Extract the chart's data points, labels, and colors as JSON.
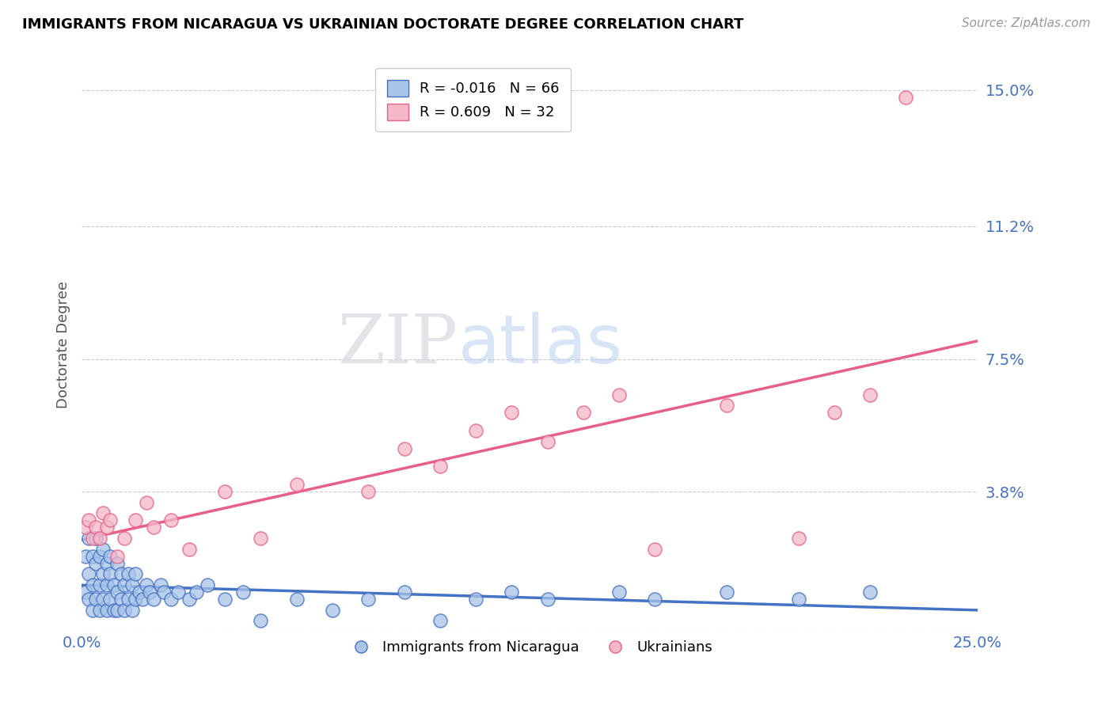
{
  "title": "IMMIGRANTS FROM NICARAGUA VS UKRAINIAN DOCTORATE DEGREE CORRELATION CHART",
  "source": "Source: ZipAtlas.com",
  "ylabel": "Doctorate Degree",
  "x_min": 0.0,
  "x_max": 0.25,
  "y_min": 0.0,
  "y_max": 0.158,
  "x_ticks": [
    0.0,
    0.05,
    0.1,
    0.15,
    0.2,
    0.25
  ],
  "y_ticks": [
    0.0,
    0.038,
    0.075,
    0.112,
    0.15
  ],
  "y_tick_labels": [
    "",
    "3.8%",
    "7.5%",
    "11.2%",
    "15.0%"
  ],
  "legend_labels": [
    "Immigrants from Nicaragua",
    "Ukrainians"
  ],
  "blue_R": -0.016,
  "blue_N": 66,
  "pink_R": 0.609,
  "pink_N": 32,
  "blue_color": "#a8c4e8",
  "pink_color": "#f5b8c8",
  "blue_line_color": "#4472c4",
  "pink_line_color": "#e8608a",
  "watermark_zip": "ZIP",
  "watermark_atlas": "atlas",
  "blue_scatter_x": [
    0.001,
    0.001,
    0.002,
    0.002,
    0.002,
    0.003,
    0.003,
    0.003,
    0.004,
    0.004,
    0.004,
    0.005,
    0.005,
    0.005,
    0.006,
    0.006,
    0.006,
    0.007,
    0.007,
    0.007,
    0.008,
    0.008,
    0.008,
    0.009,
    0.009,
    0.01,
    0.01,
    0.01,
    0.011,
    0.011,
    0.012,
    0.012,
    0.013,
    0.013,
    0.014,
    0.014,
    0.015,
    0.015,
    0.016,
    0.017,
    0.018,
    0.019,
    0.02,
    0.022,
    0.023,
    0.025,
    0.027,
    0.03,
    0.032,
    0.035,
    0.04,
    0.045,
    0.05,
    0.06,
    0.07,
    0.08,
    0.09,
    0.1,
    0.11,
    0.12,
    0.13,
    0.15,
    0.16,
    0.18,
    0.2,
    0.22
  ],
  "blue_scatter_y": [
    0.01,
    0.02,
    0.008,
    0.015,
    0.025,
    0.005,
    0.012,
    0.02,
    0.008,
    0.018,
    0.025,
    0.005,
    0.012,
    0.02,
    0.008,
    0.015,
    0.022,
    0.005,
    0.012,
    0.018,
    0.008,
    0.015,
    0.02,
    0.005,
    0.012,
    0.005,
    0.01,
    0.018,
    0.008,
    0.015,
    0.005,
    0.012,
    0.008,
    0.015,
    0.005,
    0.012,
    0.008,
    0.015,
    0.01,
    0.008,
    0.012,
    0.01,
    0.008,
    0.012,
    0.01,
    0.008,
    0.01,
    0.008,
    0.01,
    0.012,
    0.008,
    0.01,
    0.002,
    0.008,
    0.005,
    0.008,
    0.01,
    0.002,
    0.008,
    0.01,
    0.008,
    0.01,
    0.008,
    0.01,
    0.008,
    0.01
  ],
  "pink_scatter_x": [
    0.001,
    0.002,
    0.003,
    0.004,
    0.005,
    0.006,
    0.007,
    0.008,
    0.01,
    0.012,
    0.015,
    0.018,
    0.02,
    0.025,
    0.03,
    0.04,
    0.05,
    0.06,
    0.08,
    0.09,
    0.1,
    0.11,
    0.12,
    0.13,
    0.14,
    0.15,
    0.16,
    0.18,
    0.2,
    0.21,
    0.22,
    0.23
  ],
  "pink_scatter_y": [
    0.028,
    0.03,
    0.025,
    0.028,
    0.025,
    0.032,
    0.028,
    0.03,
    0.02,
    0.025,
    0.03,
    0.035,
    0.028,
    0.03,
    0.022,
    0.038,
    0.025,
    0.04,
    0.038,
    0.05,
    0.045,
    0.055,
    0.06,
    0.052,
    0.06,
    0.065,
    0.022,
    0.062,
    0.025,
    0.06,
    0.065,
    0.148
  ]
}
